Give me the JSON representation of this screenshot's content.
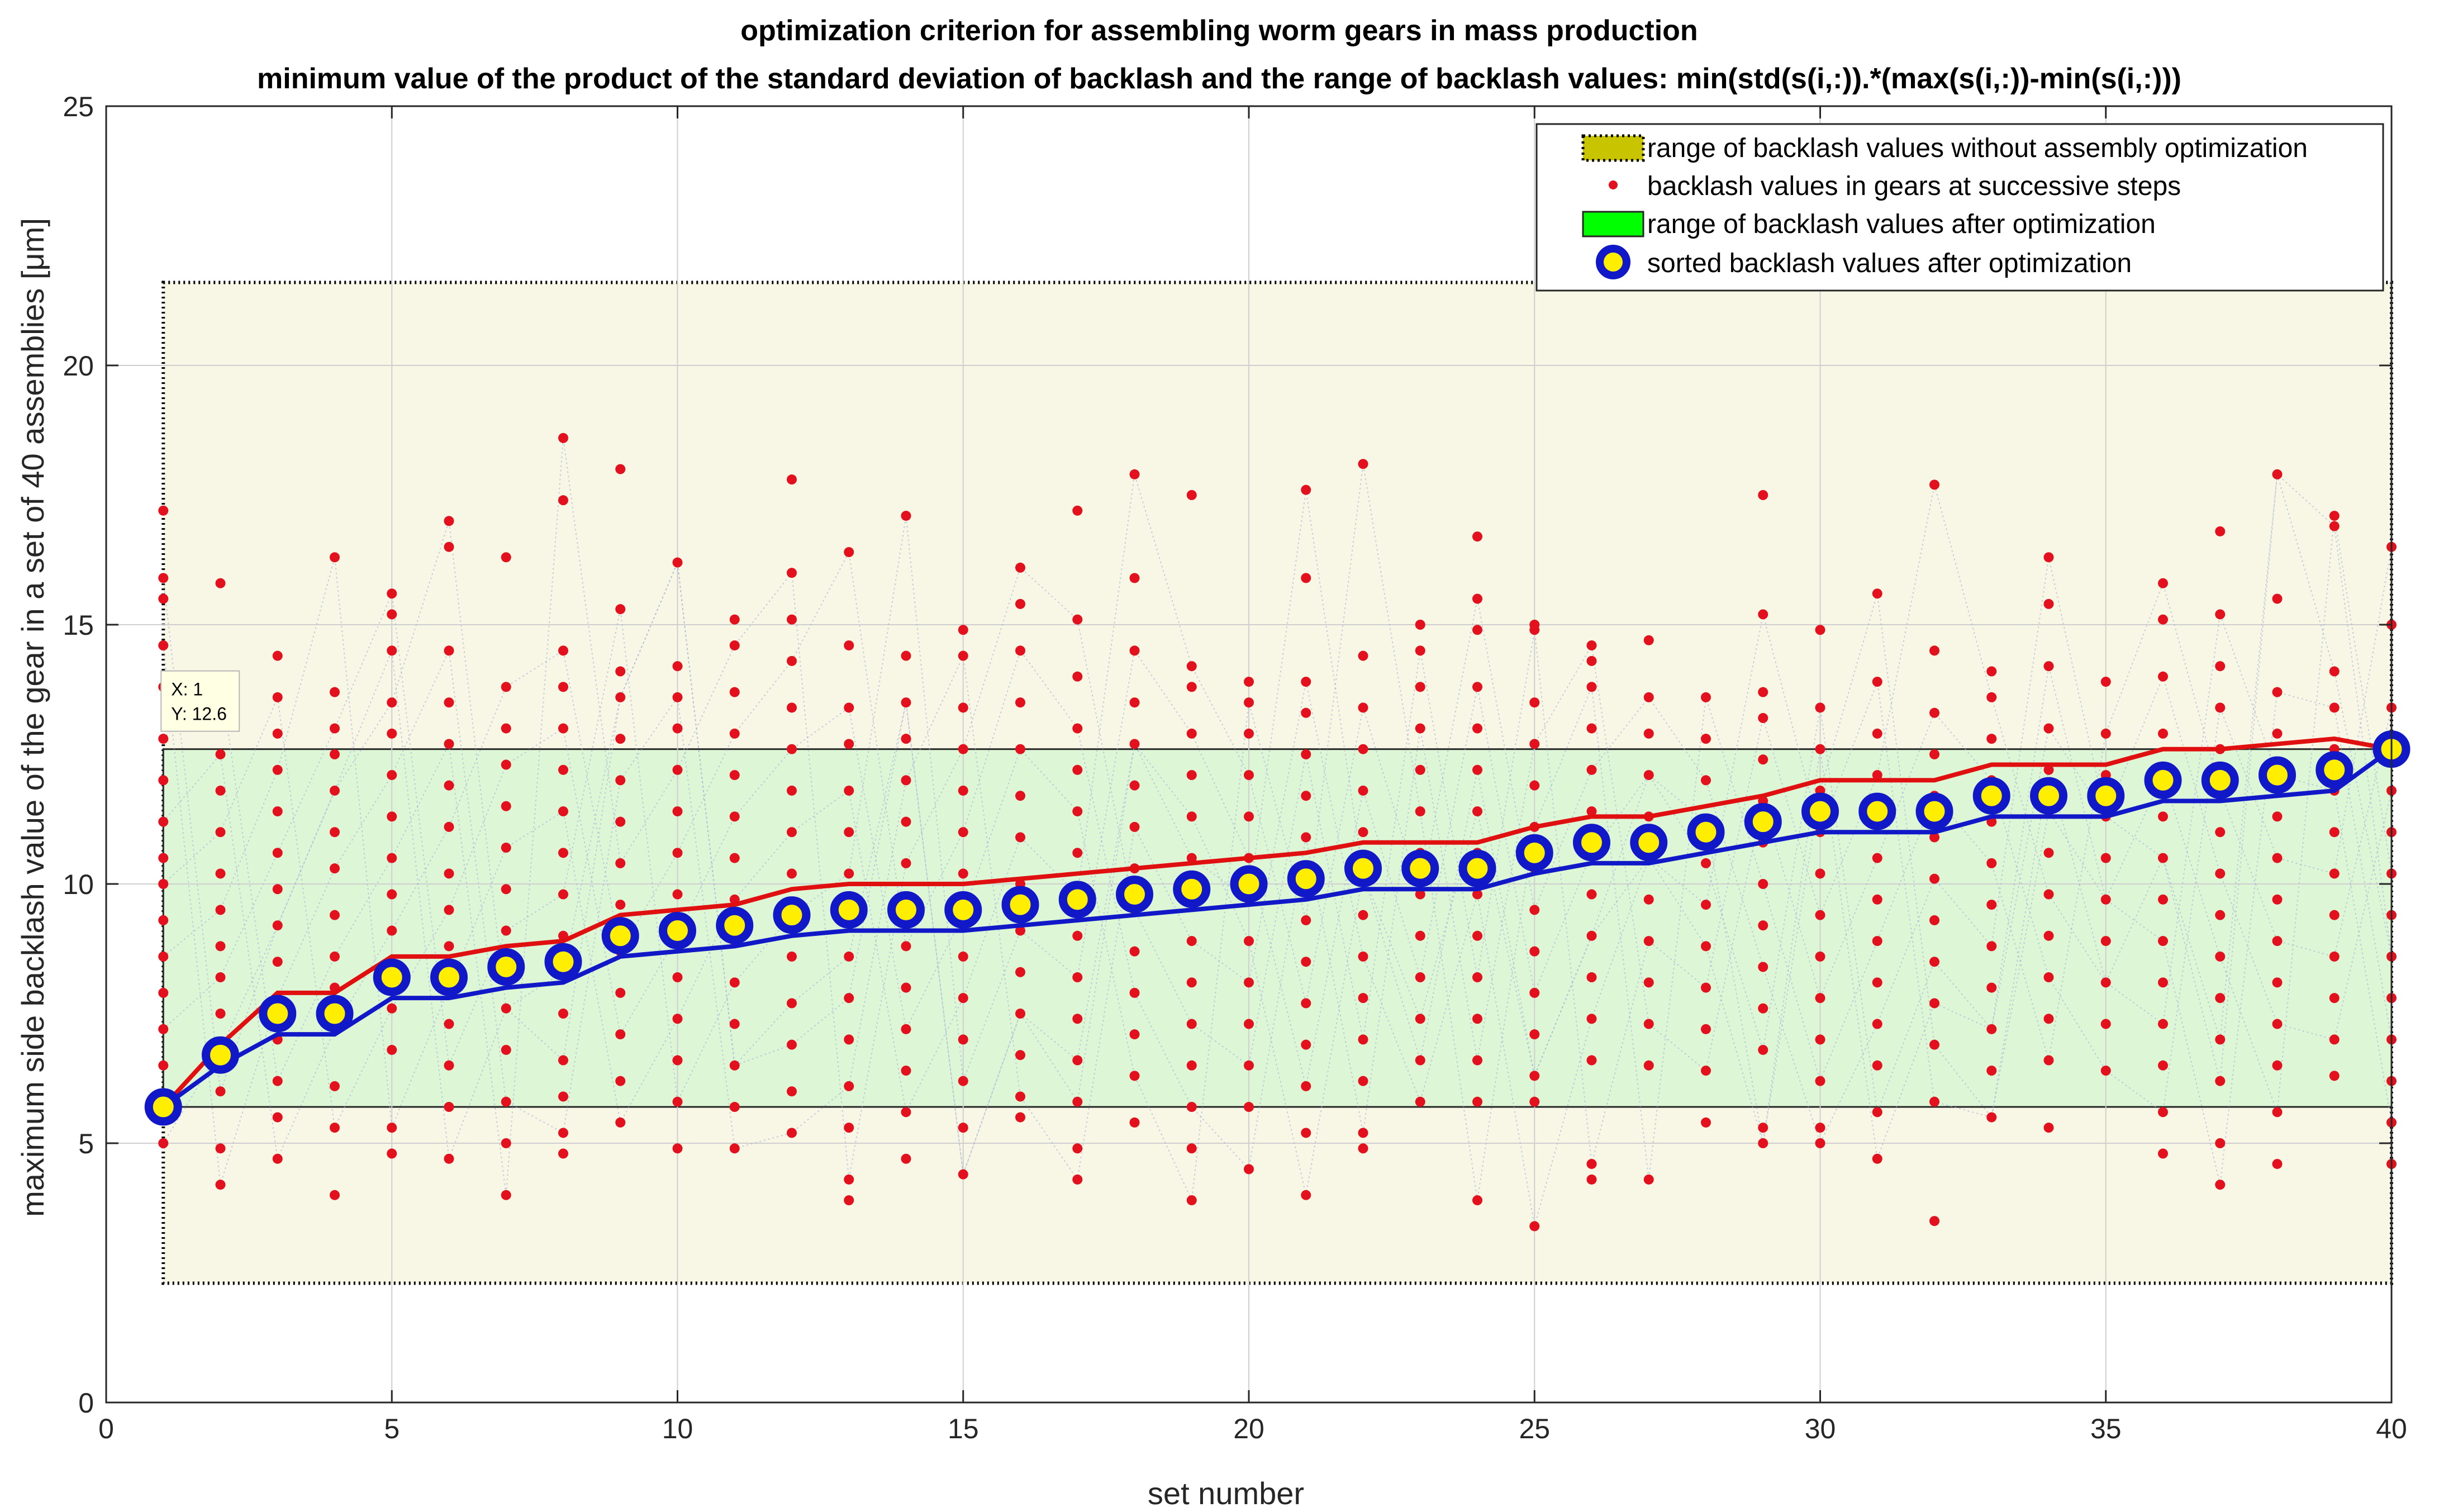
{
  "chart_data": {
    "type": "scatter",
    "title": "optimization criterion for assembling worm gears in mass production",
    "subtitle": "minimum value of the product of the standard deviation of backlash and the range of backlash values:  min(std(s(i,:)).*(max(s(i,:))-min(s(i,:)))",
    "xlabel": "set number",
    "ylabel": "maximum side backlash value of the gear in a set of 40 assemblies  [μm]",
    "xlim": [
      0,
      40
    ],
    "ylim": [
      0,
      25
    ],
    "xticks": [
      "0",
      "5",
      "10",
      "15",
      "20",
      "25",
      "30",
      "35",
      "40"
    ],
    "yticks": [
      "0",
      "5",
      "10",
      "15",
      "20",
      "25"
    ],
    "grid": true,
    "legend_position": "top-right",
    "range_without_optimization": [
      2.3,
      21.6
    ],
    "range_after_optimization": [
      5.7,
      12.6
    ],
    "series": [
      {
        "name": "range of backlash values without assembly optimization",
        "kind": "band",
        "color": "#f8f6e4",
        "legend_color": "#c9c400"
      },
      {
        "name": "backlash values in gears at successive steps",
        "kind": "dots",
        "color": "#e3101d",
        "columns": [
          [
            5.0,
            6.5,
            7.2,
            7.9,
            8.6,
            9.3,
            10.0,
            10.5,
            11.2,
            12.0,
            12.8,
            13.8,
            14.6,
            15.5,
            15.9,
            17.2
          ],
          [
            4.2,
            4.9,
            6.0,
            6.8,
            7.5,
            8.2,
            8.8,
            9.5,
            10.2,
            11.0,
            11.8,
            12.5,
            13.5,
            14.0,
            15.8
          ],
          [
            4.7,
            5.5,
            6.2,
            7.0,
            7.8,
            8.5,
            9.2,
            9.9,
            10.6,
            11.4,
            12.2,
            12.9,
            13.6,
            14.4
          ],
          [
            4.0,
            5.3,
            6.1,
            7.2,
            8.0,
            8.6,
            9.4,
            10.3,
            11.0,
            11.8,
            12.5,
            13.0,
            13.7,
            16.3
          ],
          [
            4.8,
            5.3,
            6.8,
            7.6,
            8.4,
            9.1,
            9.8,
            10.5,
            11.3,
            12.1,
            12.9,
            13.5,
            14.5,
            15.2,
            15.6
          ],
          [
            4.7,
            5.7,
            6.5,
            7.3,
            8.0,
            8.8,
            9.5,
            10.2,
            11.1,
            11.9,
            12.7,
            13.5,
            14.5,
            16.5,
            17.0
          ],
          [
            4.0,
            5.0,
            5.8,
            6.8,
            7.6,
            8.4,
            9.1,
            9.9,
            10.7,
            11.5,
            12.3,
            13.0,
            13.8,
            16.3
          ],
          [
            4.8,
            5.2,
            5.9,
            6.6,
            7.5,
            8.3,
            9.0,
            9.8,
            10.6,
            11.4,
            12.2,
            13.0,
            13.8,
            14.5,
            17.4,
            18.6
          ],
          [
            5.4,
            6.2,
            7.1,
            7.9,
            8.7,
            9.6,
            10.4,
            11.2,
            12.0,
            12.8,
            13.6,
            14.1,
            15.3,
            18.0
          ],
          [
            4.9,
            5.8,
            6.6,
            7.4,
            8.2,
            9.0,
            9.8,
            10.6,
            11.4,
            12.2,
            13.0,
            13.6,
            14.2,
            16.2
          ],
          [
            4.9,
            5.7,
            6.5,
            7.3,
            8.1,
            8.9,
            9.7,
            10.5,
            11.3,
            12.1,
            12.9,
            13.7,
            14.6,
            15.1
          ],
          [
            5.2,
            6.0,
            6.9,
            7.7,
            8.6,
            9.4,
            10.2,
            11.0,
            11.8,
            12.6,
            13.4,
            14.3,
            15.1,
            16.0,
            17.8
          ],
          [
            3.9,
            4.3,
            5.3,
            6.1,
            7.0,
            7.8,
            8.6,
            9.4,
            10.2,
            11.0,
            11.8,
            12.7,
            13.4,
            14.6,
            16.4
          ],
          [
            4.7,
            5.6,
            6.4,
            7.2,
            8.0,
            8.8,
            9.6,
            10.4,
            11.2,
            12.0,
            12.8,
            13.5,
            14.4,
            17.1
          ],
          [
            4.4,
            5.3,
            6.2,
            7.0,
            7.8,
            8.6,
            9.4,
            10.2,
            11.0,
            11.8,
            12.6,
            13.4,
            14.4,
            14.9
          ],
          [
            5.5,
            5.9,
            6.7,
            7.5,
            8.3,
            9.1,
            10.0,
            10.9,
            11.7,
            12.6,
            13.5,
            14.5,
            15.4,
            16.1
          ],
          [
            4.3,
            4.9,
            5.8,
            6.6,
            7.4,
            8.2,
            9.0,
            9.8,
            10.6,
            11.4,
            12.2,
            13.0,
            14.0,
            15.1,
            17.2
          ],
          [
            5.4,
            6.3,
            7.1,
            7.9,
            8.7,
            9.5,
            10.3,
            11.1,
            11.9,
            12.7,
            13.5,
            14.5,
            15.9,
            17.9
          ],
          [
            3.9,
            4.9,
            5.7,
            6.5,
            7.3,
            8.1,
            8.9,
            9.7,
            10.5,
            11.3,
            12.1,
            12.9,
            13.8,
            14.2,
            17.5
          ],
          [
            4.5,
            5.7,
            6.5,
            7.3,
            8.1,
            8.9,
            9.7,
            10.5,
            11.3,
            12.1,
            12.9,
            13.5,
            13.9
          ],
          [
            4.0,
            5.2,
            6.1,
            6.9,
            7.7,
            8.5,
            9.3,
            10.1,
            10.9,
            11.7,
            12.5,
            13.3,
            13.9,
            15.9,
            17.6
          ],
          [
            4.9,
            5.2,
            6.2,
            7.0,
            7.8,
            8.6,
            9.4,
            10.2,
            11.0,
            11.8,
            12.6,
            13.4,
            14.4,
            18.1
          ],
          [
            5.8,
            6.6,
            7.4,
            8.2,
            9.0,
            9.8,
            10.6,
            11.4,
            12.2,
            13.0,
            13.8,
            14.5,
            15.0
          ],
          [
            3.9,
            5.8,
            6.6,
            7.4,
            8.2,
            9.0,
            9.8,
            10.6,
            11.4,
            12.2,
            13.0,
            13.8,
            14.9,
            15.5,
            16.7
          ],
          [
            3.4,
            5.8,
            6.3,
            7.1,
            7.9,
            8.7,
            9.5,
            10.3,
            11.1,
            11.9,
            12.7,
            13.5,
            14.9,
            15.0
          ],
          [
            4.3,
            4.6,
            6.6,
            7.4,
            8.2,
            9.0,
            9.8,
            10.6,
            11.4,
            12.2,
            13.0,
            13.8,
            14.3,
            14.6
          ],
          [
            4.3,
            6.5,
            7.3,
            8.1,
            8.9,
            9.7,
            10.5,
            11.3,
            12.1,
            12.9,
            13.6,
            14.7
          ],
          [
            5.4,
            6.4,
            7.2,
            8.0,
            8.8,
            9.6,
            10.4,
            11.2,
            12.0,
            12.8,
            13.6
          ],
          [
            5.0,
            5.3,
            6.8,
            7.6,
            8.4,
            9.2,
            10.0,
            10.8,
            11.6,
            12.4,
            13.2,
            13.7,
            15.2,
            17.5
          ],
          [
            5.0,
            5.3,
            6.2,
            7.0,
            7.8,
            8.6,
            9.4,
            10.2,
            11.0,
            11.8,
            12.6,
            13.4,
            14.9
          ],
          [
            4.7,
            5.6,
            6.5,
            7.3,
            8.1,
            8.9,
            9.7,
            10.5,
            11.3,
            12.1,
            12.9,
            13.9,
            15.6
          ],
          [
            3.5,
            5.8,
            6.9,
            7.7,
            8.5,
            9.3,
            10.1,
            10.9,
            11.7,
            12.5,
            13.3,
            14.5,
            17.7
          ],
          [
            5.5,
            6.4,
            7.2,
            8.0,
            8.8,
            9.6,
            10.4,
            11.2,
            12.0,
            12.8,
            13.6,
            14.1
          ],
          [
            5.3,
            6.6,
            7.4,
            8.2,
            9.0,
            9.8,
            10.6,
            11.4,
            12.2,
            13.0,
            14.2,
            15.4,
            16.3
          ],
          [
            6.4,
            7.3,
            8.1,
            8.9,
            9.7,
            10.5,
            11.3,
            12.1,
            12.9,
            13.9
          ],
          [
            4.8,
            5.6,
            6.5,
            7.3,
            8.1,
            8.9,
            9.7,
            10.5,
            11.3,
            12.1,
            12.9,
            14.0,
            15.1,
            15.8
          ],
          [
            4.2,
            5.0,
            6.2,
            7.0,
            7.8,
            8.6,
            9.4,
            10.2,
            11.0,
            11.8,
            12.6,
            13.4,
            14.2,
            15.2,
            16.8
          ],
          [
            4.6,
            5.6,
            6.5,
            7.3,
            8.1,
            8.9,
            9.7,
            10.5,
            11.3,
            12.1,
            12.9,
            13.7,
            15.5,
            17.9
          ],
          [
            6.3,
            7.0,
            7.8,
            8.6,
            9.4,
            10.2,
            11.0,
            11.8,
            12.6,
            13.4,
            14.1,
            16.9,
            17.1
          ],
          [
            4.6,
            5.4,
            6.2,
            7.0,
            7.8,
            8.6,
            9.4,
            10.2,
            11.0,
            11.8,
            12.6,
            13.4,
            15.0,
            16.5
          ]
        ]
      },
      {
        "name": "range of backlash values after optimization",
        "kind": "band",
        "color": "#ddf6d6",
        "legend_color": "#00ff00"
      },
      {
        "name": "sorted backlash values after optimization",
        "kind": "markers",
        "x": [
          1,
          2,
          3,
          4,
          5,
          6,
          7,
          8,
          9,
          10,
          11,
          12,
          13,
          14,
          15,
          16,
          17,
          18,
          19,
          20,
          21,
          22,
          23,
          24,
          25,
          26,
          27,
          28,
          29,
          30,
          31,
          32,
          33,
          34,
          35,
          36,
          37,
          38,
          39,
          40
        ],
        "values": [
          5.7,
          6.7,
          7.5,
          7.5,
          8.2,
          8.2,
          8.4,
          8.5,
          9.0,
          9.1,
          9.2,
          9.4,
          9.5,
          9.5,
          9.5,
          9.6,
          9.7,
          9.8,
          9.9,
          10.0,
          10.1,
          10.3,
          10.3,
          10.3,
          10.6,
          10.8,
          10.8,
          11.0,
          11.2,
          11.4,
          11.4,
          11.4,
          11.7,
          11.7,
          11.7,
          12.0,
          12.0,
          12.1,
          12.2,
          12.6
        ],
        "marker_edge_color": "#1018c8",
        "marker_face_color": "#ffee00"
      }
    ],
    "upper_envelope": {
      "values": [
        5.7,
        6.9,
        7.9,
        7.9,
        8.6,
        8.6,
        8.8,
        8.9,
        9.4,
        9.5,
        9.6,
        9.9,
        10.0,
        10.0,
        10.0,
        10.1,
        10.2,
        10.3,
        10.4,
        10.5,
        10.6,
        10.8,
        10.8,
        10.8,
        11.1,
        11.3,
        11.3,
        11.5,
        11.7,
        12.0,
        12.0,
        12.0,
        12.3,
        12.3,
        12.3,
        12.6,
        12.6,
        12.7,
        12.8,
        12.6
      ],
      "color": "#e01010"
    },
    "lower_envelope": {
      "values": [
        5.7,
        6.5,
        7.1,
        7.1,
        7.8,
        7.8,
        8.0,
        8.1,
        8.6,
        8.7,
        8.8,
        9.0,
        9.1,
        9.1,
        9.1,
        9.2,
        9.3,
        9.4,
        9.5,
        9.6,
        9.7,
        9.9,
        9.9,
        9.9,
        10.2,
        10.4,
        10.4,
        10.6,
        10.8,
        11.0,
        11.0,
        11.0,
        11.3,
        11.3,
        11.3,
        11.6,
        11.6,
        11.7,
        11.8,
        12.6
      ],
      "color": "#1018c8"
    },
    "datatip": {
      "x_text": "X: 1",
      "y_text": "Y: 12.6",
      "x": 1,
      "y": 12.6
    }
  }
}
